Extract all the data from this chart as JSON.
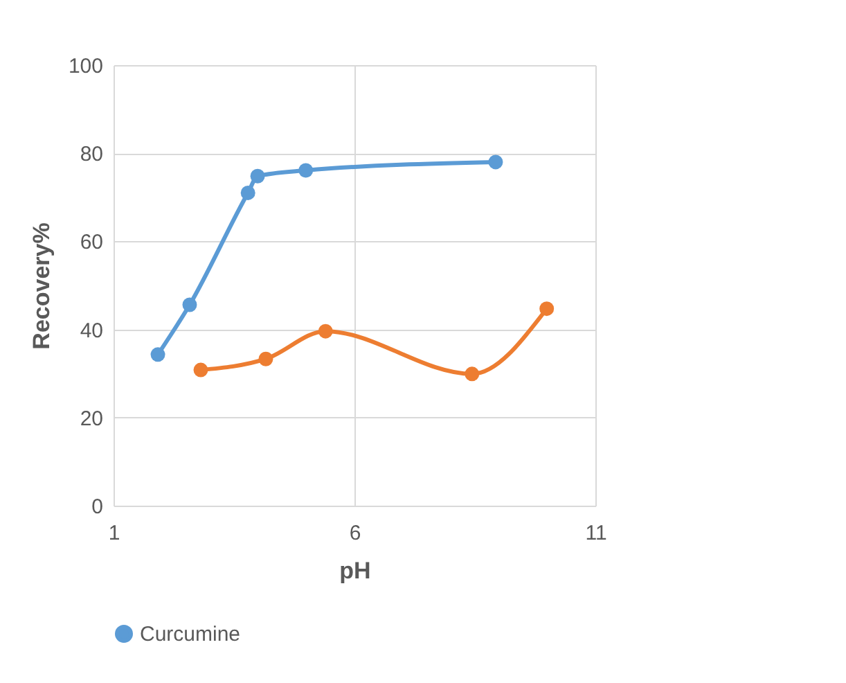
{
  "chart_data": {
    "type": "line",
    "xlabel": "pH",
    "ylabel": "Recovery%",
    "xlim": [
      1,
      11
    ],
    "xticks": [
      1,
      6,
      11
    ],
    "ylim": [
      0,
      100
    ],
    "yticks": [
      0,
      20,
      40,
      60,
      80,
      100
    ],
    "grid": true,
    "legend": "bottom",
    "marker": "circle",
    "line_style": "solid",
    "series": [
      {
        "name": "Curcumine",
        "color": "#5b9bd5",
        "x": [
          1.92,
          2.58,
          3.79,
          3.99,
          4.99,
          8.93
        ],
        "values": [
          34.3,
          45.6,
          71,
          74.8,
          76.1,
          78
        ]
      },
      {
        "color": "#ed7d31",
        "x": [
          2.81,
          4.16,
          5.4,
          8.44,
          9.99
        ],
        "values": [
          30.8,
          33.3,
          39.6,
          29.9,
          44.7
        ]
      }
    ]
  }
}
